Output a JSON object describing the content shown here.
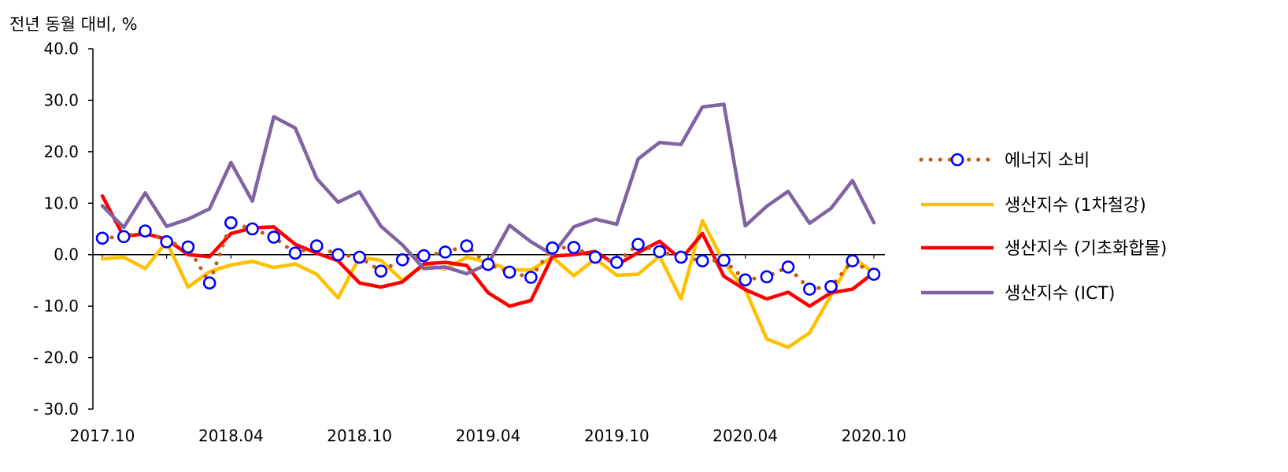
{
  "chart_data": {
    "type": "line",
    "unit_label": "전년 동월 대비, %",
    "ylim": [
      -30,
      40
    ],
    "y_ticks": [
      40,
      30,
      20,
      10,
      0,
      -10,
      -20,
      -30
    ],
    "y_tick_labels": [
      "40.0",
      "30.0",
      "20.0",
      "10.0",
      "0.0",
      "- 10.0",
      "- 20.0",
      "- 30.0"
    ],
    "x": [
      "2017.10",
      "2017.11",
      "2017.12",
      "2018.01",
      "2018.02",
      "2018.03",
      "2018.04",
      "2018.05",
      "2018.06",
      "2018.07",
      "2018.08",
      "2018.09",
      "2018.10",
      "2018.11",
      "2018.12",
      "2019.01",
      "2019.02",
      "2019.03",
      "2019.04",
      "2019.05",
      "2019.06",
      "2019.07",
      "2019.08",
      "2019.09",
      "2019.10",
      "2019.11",
      "2019.12",
      "2020.01",
      "2020.02",
      "2020.03",
      "2020.04",
      "2020.05",
      "2020.06",
      "2020.07",
      "2020.08",
      "2020.09",
      "2020.10"
    ],
    "x_tick_labels": [
      "2017.10",
      "2018.04",
      "2018.10",
      "2019.04",
      "2019.10",
      "2020.04",
      "2020.10"
    ],
    "grid": false,
    "legend_position": "right",
    "series": [
      {
        "name": "에너지 소비",
        "style": "dotted-circles",
        "color": "#c55a11",
        "marker_color": "#0000ff",
        "values": [
          3.2,
          3.5,
          4.6,
          2.5,
          1.5,
          -5.5,
          6.2,
          5.0,
          3.4,
          0.3,
          1.7,
          0.0,
          -0.5,
          -3.2,
          -1.0,
          -0.2,
          0.5,
          1.7,
          -1.9,
          -3.4,
          -4.4,
          1.3,
          1.4,
          -0.5,
          -1.5,
          2.0,
          0.6,
          -0.5,
          -1.2,
          -1.1,
          -4.9,
          -4.3,
          -2.4,
          -6.7,
          -6.2,
          -1.2,
          -3.8
        ]
      },
      {
        "name": "생산지수 (1차철강)",
        "style": "line",
        "color": "#ffc000",
        "values": [
          -0.8,
          -0.5,
          -2.7,
          2.5,
          -6.3,
          -3.3,
          -2.0,
          -1.3,
          -2.5,
          -1.8,
          -3.8,
          -8.4,
          -0.5,
          -1.1,
          -5.0,
          -2.0,
          -2.8,
          -0.5,
          -1.5,
          -2.9,
          -3.0,
          -0.5,
          -4.1,
          -0.8,
          -4.0,
          -3.8,
          -0.3,
          -8.6,
          6.6,
          -1.5,
          -6.8,
          -16.4,
          -18.0,
          -15.2,
          -7.9,
          -0.5,
          -3.5
        ]
      },
      {
        "name": "생산지수 (기초화합물)",
        "style": "line",
        "color": "#ff0000",
        "values": [
          11.4,
          3.5,
          4.1,
          3.0,
          0.0,
          -0.4,
          4.1,
          5.2,
          5.4,
          2.0,
          0.3,
          -1.2,
          -5.5,
          -6.3,
          -5.3,
          -1.8,
          -1.5,
          -2.1,
          -7.4,
          -10.0,
          -8.9,
          -0.3,
          0.0,
          0.6,
          -2.0,
          0.4,
          2.6,
          -0.9,
          4.1,
          -4.2,
          -6.8,
          -8.6,
          -7.3,
          -10.0,
          -7.4,
          -6.7,
          -3.5
        ]
      },
      {
        "name": "생산지수 (ICT)",
        "style": "line",
        "color": "#8064a2",
        "values": [
          9.5,
          5.3,
          12.0,
          5.5,
          6.9,
          8.9,
          17.9,
          10.4,
          26.8,
          24.6,
          14.8,
          10.2,
          12.2,
          5.5,
          1.9,
          -2.7,
          -2.4,
          -3.7,
          -1.8,
          5.7,
          2.5,
          0.0,
          5.4,
          6.9,
          5.9,
          18.6,
          21.8,
          21.4,
          28.7,
          29.2,
          5.6,
          9.4,
          12.3,
          6.1,
          9.0,
          14.4,
          6.2
        ]
      }
    ]
  }
}
